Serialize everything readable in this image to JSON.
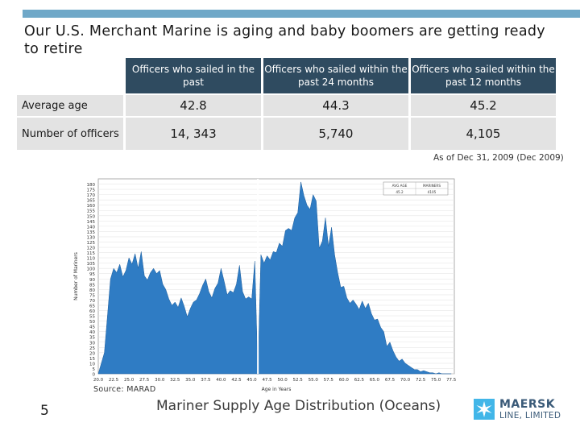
{
  "title": "Our U.S. Merchant Marine is aging and baby boomers are getting ready to retire",
  "table": {
    "headers": [
      "Officers who sailed in the past",
      "Officers who sailed within the past 24 months",
      "Officers who sailed within the past 12 months"
    ],
    "rows": [
      {
        "label": "Average age",
        "values": [
          "42.8",
          "44.3",
          "45.2"
        ]
      },
      {
        "label": "Number of officers",
        "values": [
          "14, 343",
          "5,740",
          "4,105"
        ]
      }
    ]
  },
  "as_of": "As of Dec 31, 2009 (Dec 2009)",
  "source": "Source: MARAD",
  "page_number": "5",
  "caption": "Mariner Supply Age Distribution (Oceans)",
  "logo": {
    "line1": "MAERSK",
    "line2": "LINE, LIMITED"
  },
  "colors": {
    "accent_bar": "#6fa8c8",
    "header_bg": "#2f4b60",
    "cell_bg": "#e3e3e3",
    "area_fill": "#2f7cc4",
    "logo": "#3a5a78",
    "logo_star_bg": "#42b6e8"
  },
  "chart_data": {
    "type": "area",
    "title": "",
    "xlabel": "Age in Years",
    "ylabel": "Number of Mariners",
    "ylim": [
      0,
      185
    ],
    "xlim": [
      20,
      78
    ],
    "y_ticks": [
      0,
      5,
      10,
      15,
      20,
      25,
      30,
      35,
      40,
      45,
      50,
      55,
      60,
      65,
      70,
      75,
      80,
      85,
      90,
      95,
      100,
      105,
      110,
      115,
      120,
      125,
      130,
      135,
      140,
      145,
      150,
      155,
      160,
      165,
      170,
      175,
      180
    ],
    "x_tick_labels": [
      "20.0",
      "22.5",
      "25.0",
      "27.5",
      "30.0",
      "32.5",
      "35.0",
      "37.5",
      "40.0",
      "42.5",
      "45.0",
      "47.5",
      "50.0",
      "52.5",
      "55.0",
      "57.5",
      "60.0",
      "62.5",
      "65.0",
      "67.5",
      "70.0",
      "72.5",
      "75.0",
      "77.5"
    ],
    "marker_line_x": 46,
    "legend": {
      "headers": [
        "AVG AGE",
        "MARINERS"
      ],
      "values": [
        "45.2",
        "4105"
      ]
    },
    "x": [
      20,
      21,
      21.5,
      22,
      22.5,
      23,
      23.5,
      24,
      24.5,
      25,
      25.5,
      26,
      26.5,
      27,
      27.5,
      28,
      28.5,
      29,
      29.5,
      30,
      30.5,
      31,
      31.5,
      32,
      32.5,
      33,
      33.5,
      34,
      34.5,
      35,
      35.5,
      36,
      36.5,
      37,
      37.5,
      38,
      38.5,
      39,
      39.5,
      40,
      40.5,
      41,
      41.5,
      42,
      42.5,
      43,
      43.5,
      44,
      44.5,
      45,
      45.5,
      46,
      46.5,
      47,
      47.5,
      48,
      48.5,
      49,
      49.5,
      50,
      50.5,
      51,
      51.5,
      52,
      52.5,
      53,
      53.5,
      54,
      54.5,
      55,
      55.5,
      56,
      56.5,
      57,
      57.5,
      58,
      58.5,
      59,
      59.5,
      60,
      60.5,
      61,
      61.5,
      62,
      62.5,
      63,
      63.5,
      64,
      64.5,
      65,
      65.5,
      66,
      66.5,
      67,
      67.5,
      68,
      68.5,
      69,
      69.5,
      70,
      70.5,
      71,
      71.5,
      72,
      72.5,
      73,
      73.5,
      74,
      74.5,
      75,
      75.5,
      76,
      76.5,
      77,
      77.5
    ],
    "values": [
      0,
      20,
      55,
      90,
      100,
      96,
      104,
      92,
      98,
      110,
      104,
      114,
      100,
      116,
      93,
      89,
      96,
      100,
      95,
      98,
      85,
      80,
      71,
      65,
      68,
      63,
      72,
      64,
      54,
      62,
      68,
      70,
      76,
      84,
      90,
      78,
      72,
      81,
      86,
      100,
      88,
      75,
      79,
      77,
      85,
      103,
      78,
      71,
      73,
      71,
      107,
      0,
      113,
      105,
      112,
      108,
      116,
      115,
      124,
      121,
      136,
      138,
      136,
      148,
      153,
      182,
      169,
      160,
      156,
      170,
      164,
      119,
      126,
      148,
      121,
      139,
      113,
      96,
      82,
      83,
      72,
      67,
      70,
      66,
      61,
      69,
      62,
      67,
      57,
      51,
      52,
      44,
      40,
      26,
      30,
      22,
      16,
      12,
      14,
      10,
      8,
      6,
      4,
      4,
      2,
      3,
      2,
      1,
      1,
      0,
      1,
      0,
      0,
      0,
      0
    ]
  }
}
